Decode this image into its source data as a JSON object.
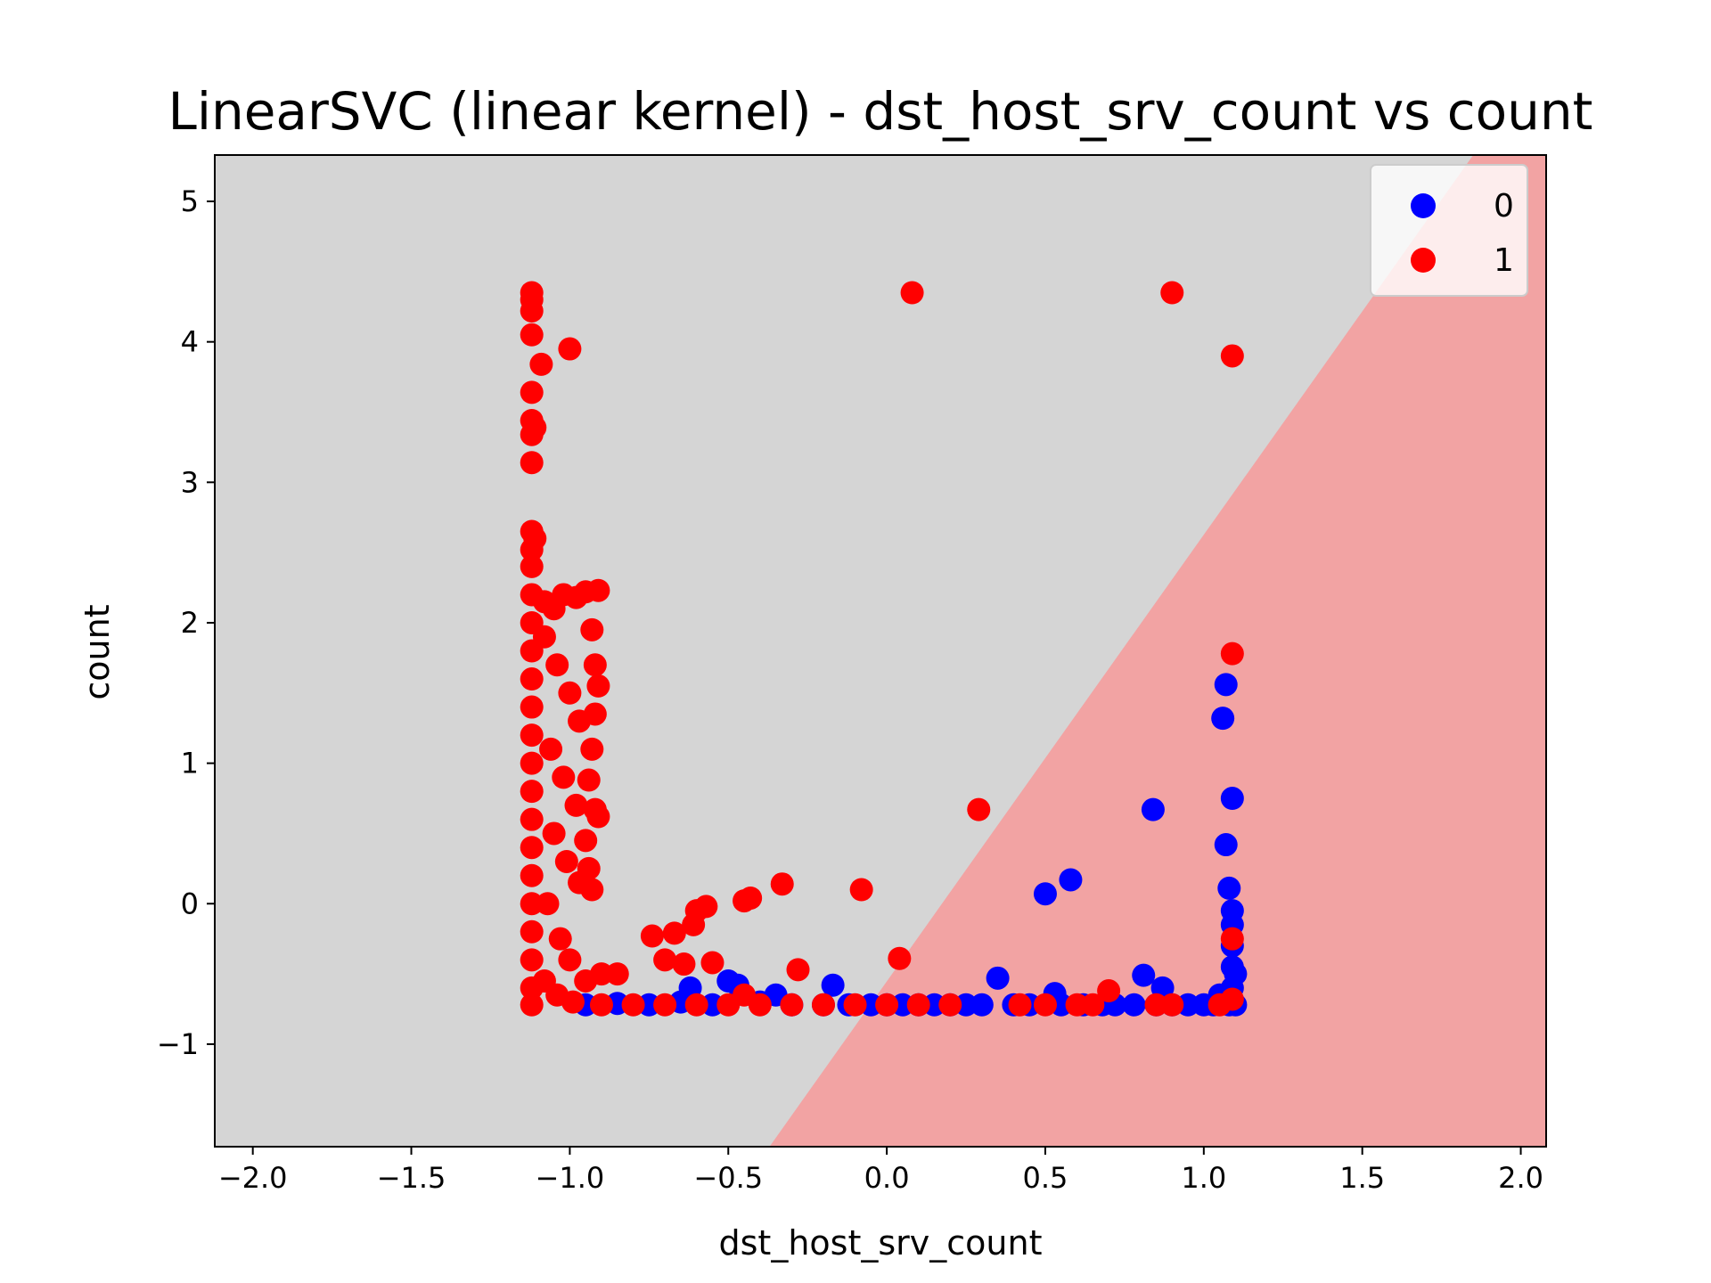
{
  "chart_data": {
    "type": "scatter",
    "title": "LinearSVC (linear kernel) - dst_host_srv_count vs count",
    "xlabel": "dst_host_srv_count",
    "ylabel": "count",
    "xlim": [
      -2.12,
      2.08
    ],
    "ylim": [
      -1.73,
      5.33
    ],
    "x_ticks": [
      -2.0,
      -1.5,
      -1.0,
      -0.5,
      0.0,
      0.5,
      1.0,
      1.5,
      2.0
    ],
    "x_tick_labels": [
      "−2.0",
      "−1.5",
      "−1.0",
      "−0.5",
      "0.0",
      "0.5",
      "1.0",
      "1.5",
      "2.0"
    ],
    "y_ticks": [
      -1,
      0,
      1,
      2,
      3,
      4,
      5
    ],
    "y_tick_labels": [
      "−1",
      "0",
      "1",
      "2",
      "3",
      "4",
      "5"
    ],
    "decision_boundary": {
      "points": [
        [
          -0.37,
          -1.73
        ],
        [
          1.85,
          5.33
        ]
      ]
    },
    "regions": {
      "class_0_color": "#d5d5d5",
      "class_1_color": "#f2a3a3"
    },
    "legend": {
      "position": "top-right",
      "entries": [
        "0",
        "1"
      ]
    },
    "series": [
      {
        "name": "0",
        "color": "#0000ff",
        "points": [
          [
            -0.95,
            -0.72
          ],
          [
            -0.85,
            -0.71
          ],
          [
            -0.75,
            -0.72
          ],
          [
            -0.65,
            -0.7
          ],
          [
            -0.62,
            -0.6
          ],
          [
            -0.55,
            -0.72
          ],
          [
            -0.5,
            -0.55
          ],
          [
            -0.47,
            -0.58
          ],
          [
            -0.4,
            -0.7
          ],
          [
            -0.35,
            -0.65
          ],
          [
            -0.3,
            -0.72
          ],
          [
            -0.2,
            -0.72
          ],
          [
            -0.17,
            -0.58
          ],
          [
            -0.12,
            -0.72
          ],
          [
            -0.05,
            -0.72
          ],
          [
            0.0,
            -0.72
          ],
          [
            0.05,
            -0.72
          ],
          [
            0.1,
            -0.72
          ],
          [
            0.15,
            -0.72
          ],
          [
            0.2,
            -0.72
          ],
          [
            0.25,
            -0.72
          ],
          [
            0.3,
            -0.72
          ],
          [
            0.35,
            -0.53
          ],
          [
            0.4,
            -0.72
          ],
          [
            0.45,
            -0.72
          ],
          [
            0.5,
            0.07
          ],
          [
            0.53,
            -0.64
          ],
          [
            0.55,
            -0.72
          ],
          [
            0.58,
            0.17
          ],
          [
            0.62,
            -0.72
          ],
          [
            0.68,
            -0.72
          ],
          [
            0.72,
            -0.72
          ],
          [
            0.78,
            -0.72
          ],
          [
            0.81,
            -0.51
          ],
          [
            0.84,
            0.67
          ],
          [
            0.85,
            -0.72
          ],
          [
            0.87,
            -0.6
          ],
          [
            0.9,
            -0.72
          ],
          [
            0.95,
            -0.72
          ],
          [
            1.0,
            -0.72
          ],
          [
            1.03,
            -0.72
          ],
          [
            1.05,
            -0.65
          ],
          [
            1.06,
            1.32
          ],
          [
            1.07,
            1.56
          ],
          [
            1.07,
            0.42
          ],
          [
            1.08,
            0.11
          ],
          [
            1.08,
            -0.72
          ],
          [
            1.09,
            0.75
          ],
          [
            1.09,
            -0.05
          ],
          [
            1.09,
            -0.15
          ],
          [
            1.09,
            -0.3
          ],
          [
            1.09,
            -0.45
          ],
          [
            1.09,
            -0.6
          ],
          [
            1.1,
            -0.72
          ],
          [
            1.1,
            -0.5
          ]
        ]
      },
      {
        "name": "1",
        "color": "#ff0000",
        "points": [
          [
            -1.12,
            4.35
          ],
          [
            -1.12,
            4.3
          ],
          [
            -1.12,
            4.22
          ],
          [
            -1.12,
            4.05
          ],
          [
            -1.09,
            3.84
          ],
          [
            -1.0,
            3.95
          ],
          [
            -1.12,
            3.64
          ],
          [
            -1.12,
            3.44
          ],
          [
            -1.11,
            3.39
          ],
          [
            -1.12,
            3.34
          ],
          [
            -1.12,
            3.14
          ],
          [
            -1.12,
            2.65
          ],
          [
            -1.11,
            2.6
          ],
          [
            -1.12,
            2.52
          ],
          [
            -1.12,
            2.4
          ],
          [
            -1.12,
            2.2
          ],
          [
            -1.12,
            2.0
          ],
          [
            -1.12,
            1.8
          ],
          [
            -1.12,
            1.6
          ],
          [
            -1.12,
            1.4
          ],
          [
            -1.12,
            1.2
          ],
          [
            -1.12,
            1.0
          ],
          [
            -1.12,
            0.8
          ],
          [
            -1.12,
            0.6
          ],
          [
            -1.12,
            0.4
          ],
          [
            -1.12,
            0.2
          ],
          [
            -1.12,
            0.0
          ],
          [
            -1.12,
            -0.2
          ],
          [
            -1.12,
            -0.4
          ],
          [
            -1.12,
            -0.6
          ],
          [
            -1.12,
            -0.72
          ],
          [
            -1.08,
            2.15
          ],
          [
            -1.05,
            2.1
          ],
          [
            -1.02,
            2.2
          ],
          [
            -0.98,
            2.18
          ],
          [
            -0.95,
            2.22
          ],
          [
            -0.91,
            2.23
          ],
          [
            -0.93,
            1.95
          ],
          [
            -0.92,
            1.7
          ],
          [
            -0.91,
            1.55
          ],
          [
            -0.92,
            1.35
          ],
          [
            -0.93,
            1.1
          ],
          [
            -0.94,
            0.88
          ],
          [
            -0.91,
            0.62
          ],
          [
            -0.92,
            0.67
          ],
          [
            -0.95,
            0.45
          ],
          [
            -0.94,
            0.25
          ],
          [
            -0.93,
            0.1
          ],
          [
            -1.08,
            1.9
          ],
          [
            -1.04,
            1.7
          ],
          [
            -1.0,
            1.5
          ],
          [
            -0.97,
            1.3
          ],
          [
            -1.06,
            1.1
          ],
          [
            -1.02,
            0.9
          ],
          [
            -0.98,
            0.7
          ],
          [
            -1.05,
            0.5
          ],
          [
            -1.01,
            0.3
          ],
          [
            -0.97,
            0.15
          ],
          [
            -1.07,
            0.0
          ],
          [
            -1.03,
            -0.25
          ],
          [
            -1.0,
            -0.4
          ],
          [
            -0.95,
            -0.55
          ],
          [
            -0.9,
            -0.5
          ],
          [
            -0.85,
            -0.5
          ],
          [
            -1.08,
            -0.55
          ],
          [
            -1.04,
            -0.65
          ],
          [
            -0.99,
            -0.7
          ],
          [
            -0.9,
            -0.72
          ],
          [
            -0.8,
            -0.72
          ],
          [
            -0.7,
            -0.72
          ],
          [
            -0.6,
            -0.72
          ],
          [
            -0.5,
            -0.72
          ],
          [
            -0.45,
            -0.65
          ],
          [
            -0.4,
            -0.72
          ],
          [
            -0.3,
            -0.72
          ],
          [
            -0.2,
            -0.72
          ],
          [
            -0.1,
            -0.72
          ],
          [
            0.0,
            -0.72
          ],
          [
            0.1,
            -0.72
          ],
          [
            0.2,
            -0.72
          ],
          [
            -0.74,
            -0.23
          ],
          [
            -0.7,
            -0.4
          ],
          [
            -0.67,
            -0.21
          ],
          [
            -0.64,
            -0.43
          ],
          [
            -0.61,
            -0.15
          ],
          [
            -0.6,
            -0.05
          ],
          [
            -0.55,
            -0.42
          ],
          [
            -0.57,
            -0.02
          ],
          [
            -0.45,
            0.02
          ],
          [
            -0.43,
            0.04
          ],
          [
            -0.33,
            0.14
          ],
          [
            -0.28,
            -0.47
          ],
          [
            -0.08,
            0.1
          ],
          [
            0.08,
            4.35
          ],
          [
            0.04,
            -0.39
          ],
          [
            0.29,
            0.67
          ],
          [
            0.9,
            4.35
          ],
          [
            1.09,
            3.9
          ],
          [
            1.09,
            1.78
          ],
          [
            1.09,
            -0.25
          ],
          [
            0.42,
            -0.72
          ],
          [
            0.5,
            -0.72
          ],
          [
            0.6,
            -0.72
          ],
          [
            0.65,
            -0.72
          ],
          [
            0.7,
            -0.62
          ],
          [
            0.85,
            -0.72
          ],
          [
            0.9,
            -0.72
          ],
          [
            1.05,
            -0.72
          ],
          [
            1.09,
            -0.68
          ]
        ]
      }
    ]
  }
}
